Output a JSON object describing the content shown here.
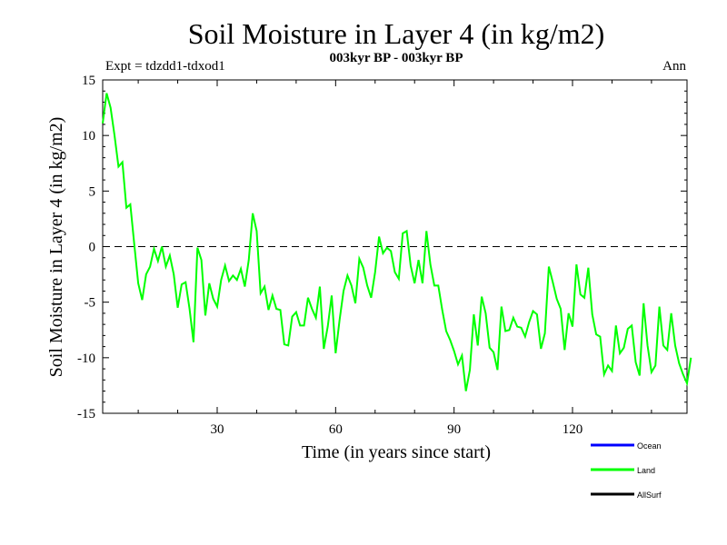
{
  "chart_data": {
    "type": "line",
    "title": "Soil Moisture in Layer 4 (in kg/m2)",
    "subtitle": "003kyr BP - 003kyr BP",
    "expt_label": "Expt = tdzdd1-tdxod1",
    "season_label": "Ann",
    "xlabel": "Time (in years since start)",
    "ylabel": "Soil Moisture in Layer 4 (in kg/m2)",
    "xlim": [
      1,
      149
    ],
    "ylim": [
      -15,
      15
    ],
    "x_ticks": [
      30,
      60,
      90,
      120
    ],
    "y_ticks": [
      15,
      10,
      5,
      0,
      -5,
      -10,
      -15
    ],
    "x_tick_labels": [
      "30",
      "60",
      "90",
      "120"
    ],
    "y_tick_labels": [
      "15",
      "10",
      "5",
      "0",
      "-5",
      "-10",
      "-15"
    ],
    "zero_line": true,
    "legend": [
      {
        "name": "Ocean",
        "color": "#0000ff"
      },
      {
        "name": "Land",
        "color": "#00ff00"
      },
      {
        "name": "AllSurf",
        "color": "#000000"
      }
    ],
    "series": [
      {
        "name": "Land",
        "color": "#00ff00",
        "x_start": 1,
        "values": [
          11.1,
          13.8,
          12.5,
          10.0,
          7.2,
          7.6,
          3.5,
          3.8,
          0.2,
          -3.3,
          -4.8,
          -2.5,
          -1.8,
          -0.2,
          -1.3,
          0.0,
          -1.8,
          -0.8,
          -2.5,
          -5.5,
          -3.4,
          -3.2,
          -5.6,
          -8.6,
          -0.1,
          -1.2,
          -6.2,
          -3.3,
          -4.7,
          -5.4,
          -3.0,
          -1.7,
          -3.1,
          -2.6,
          -3.0,
          -2.0,
          -3.6,
          -1.2,
          3.0,
          1.4,
          -4.2,
          -3.6,
          -5.7,
          -4.4,
          -5.6,
          -5.7,
          -8.8,
          -8.9,
          -6.3,
          -5.9,
          -7.1,
          -7.1,
          -4.6,
          -5.6,
          -6.4,
          -3.6,
          -9.2,
          -7.2,
          -4.4,
          -9.6,
          -6.6,
          -4.0,
          -2.6,
          -3.5,
          -5.1,
          -1.1,
          -1.9,
          -3.5,
          -4.6,
          -2.3,
          0.9,
          -0.6,
          -0.1,
          -0.4,
          -2.3,
          -2.9,
          1.2,
          1.4,
          -1.7,
          -3.3,
          -1.2,
          -3.3,
          1.4,
          -1.6,
          -3.5,
          -3.5,
          -5.7,
          -7.6,
          -8.4,
          -9.4,
          -10.6,
          -9.8,
          -13.0,
          -11.1,
          -6.1,
          -8.9,
          -4.5,
          -6.0,
          -9.1,
          -9.5,
          -11.1,
          -5.4,
          -7.6,
          -7.5,
          -6.4,
          -7.2,
          -7.3,
          -8.1,
          -6.8,
          -5.8,
          -6.1,
          -9.2,
          -7.8,
          -1.8,
          -3.2,
          -4.7,
          -5.6,
          -9.3,
          -6.0,
          -7.2,
          -1.6,
          -4.3,
          -4.6,
          -1.9,
          -6.1,
          -7.9,
          -8.1,
          -11.5,
          -10.7,
          -11.2,
          -7.1,
          -9.6,
          -9.1,
          -7.4,
          -7.1,
          -10.4,
          -11.6,
          -5.1,
          -8.9,
          -11.3,
          -10.7,
          -5.4,
          -8.9,
          -9.3,
          -6.0,
          -8.9,
          -10.5,
          -11.5,
          -12.3,
          -10.0
        ]
      }
    ]
  }
}
